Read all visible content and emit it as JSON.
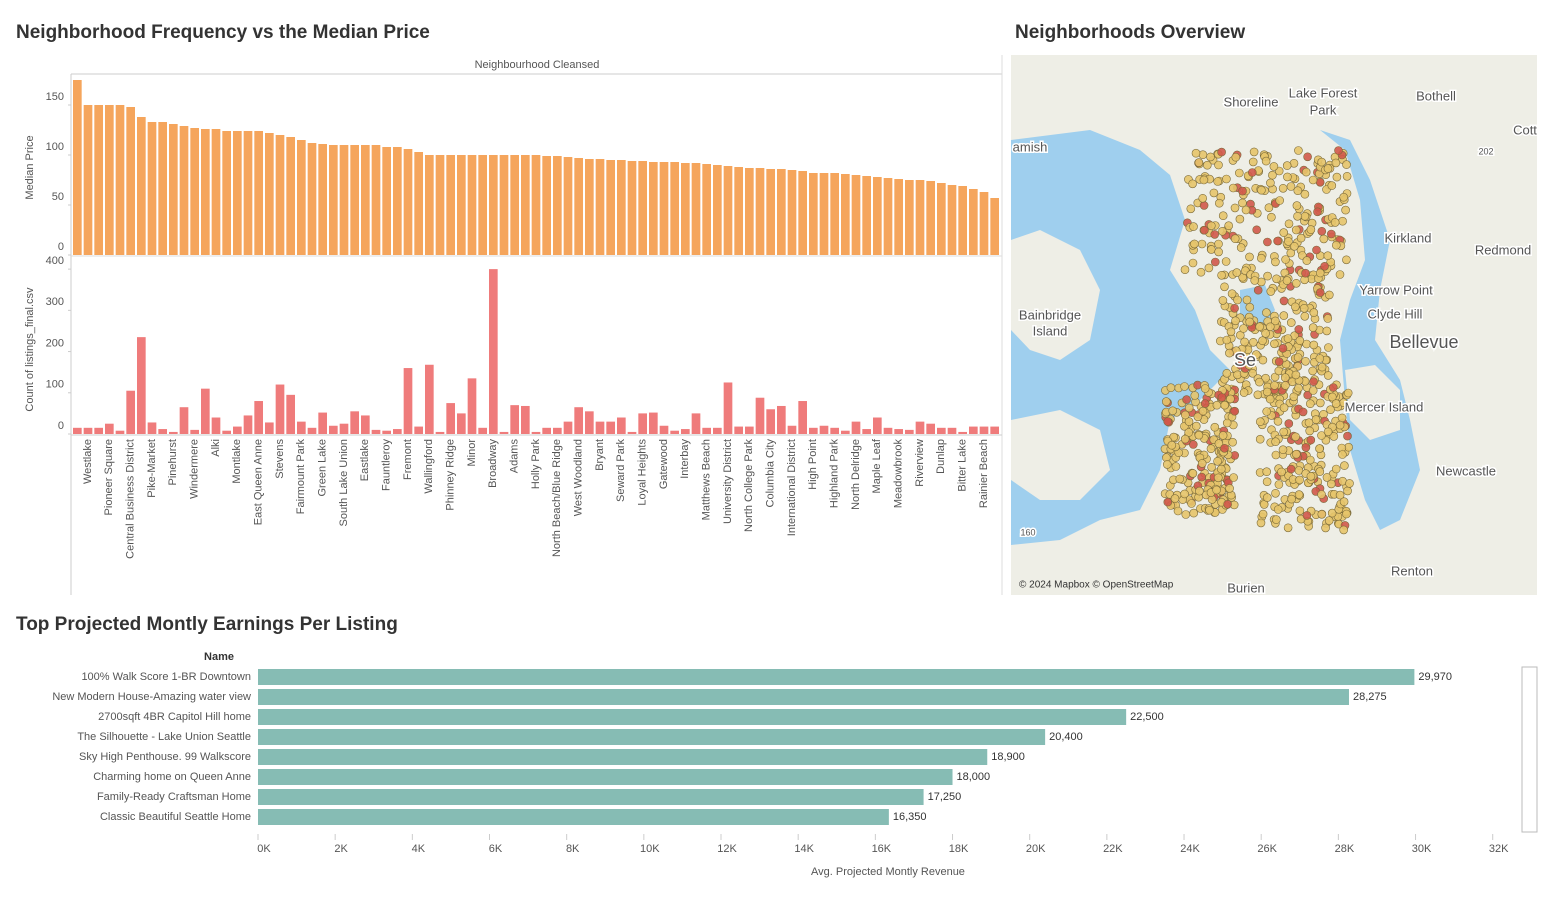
{
  "chart_data": [
    {
      "type": "panel-bar",
      "title": "Neighborhood Frequency vs the Median Price",
      "x_label": "Neighbourhood Cleansed",
      "categories": [
        null,
        "Westlake",
        null,
        "Pioneer Square",
        null,
        "Central Business District",
        null,
        "Pike-Market",
        null,
        "Pinehurst",
        null,
        "Windermere",
        null,
        "Alki",
        null,
        "Montlake",
        null,
        "East Queen Anne",
        null,
        "Stevens",
        null,
        "Fairmount Park",
        null,
        "Green Lake",
        null,
        "South Lake Union",
        null,
        "Eastlake",
        null,
        "Fauntleroy",
        null,
        "Fremont",
        null,
        "Wallingford",
        null,
        "Phinney Ridge",
        null,
        "Minor",
        null,
        "Broadway",
        null,
        "Adams",
        null,
        "Holly Park",
        null,
        "North Beach/Blue Ridge",
        null,
        "West Woodland",
        null,
        "Bryant",
        null,
        "Seward Park",
        null,
        "Loyal Heights",
        null,
        "Gatewood",
        null,
        "Interbay",
        null,
        "Matthews Beach",
        null,
        "University District",
        null,
        "North College Park",
        null,
        "Columbia City",
        null,
        "International District",
        null,
        "High Point",
        null,
        "Highland Park",
        null,
        "North Delridge",
        null,
        "Maple Leaf",
        null,
        "Meadowbrook",
        null,
        "Riverview",
        null,
        "Dunlap",
        null,
        "Bitter Lake",
        null,
        "Rainier Beach",
        null
      ],
      "panels": [
        {
          "y_label": "Median Price",
          "color": "#f5a55c",
          "ylim": [
            0,
            175
          ],
          "yticks": [
            0,
            50,
            100,
            150
          ],
          "values": [
            175,
            150,
            150,
            150,
            150,
            148,
            138,
            133,
            133,
            131,
            129,
            127,
            126,
            126,
            124,
            124,
            124,
            124,
            122,
            120,
            118,
            115,
            112,
            111,
            110,
            110,
            110,
            110,
            110,
            108,
            108,
            106,
            103,
            100,
            100,
            100,
            100,
            100,
            100,
            100,
            100,
            100,
            100,
            100,
            99,
            99,
            98,
            97,
            96,
            96,
            95,
            95,
            94,
            94,
            93,
            93,
            93,
            92,
            92,
            91,
            90,
            89,
            88,
            87,
            87,
            86,
            86,
            85,
            84,
            82,
            82,
            82,
            81,
            80,
            79,
            78,
            77,
            76,
            75,
            75,
            74,
            72,
            70,
            69,
            66,
            63,
            57
          ]
        },
        {
          "y_label": "Count of listings_final.csv",
          "color": "#ef7b7b",
          "ylim": [
            0,
            410
          ],
          "yticks": [
            0,
            100,
            200,
            300,
            400
          ],
          "values": [
            15,
            15,
            15,
            25,
            8,
            105,
            235,
            28,
            12,
            5,
            65,
            10,
            110,
            40,
            8,
            18,
            45,
            80,
            28,
            120,
            95,
            30,
            15,
            52,
            20,
            25,
            55,
            45,
            10,
            8,
            12,
            160,
            18,
            168,
            5,
            75,
            50,
            135,
            15,
            400,
            5,
            70,
            68,
            5,
            15,
            15,
            30,
            65,
            55,
            30,
            30,
            40,
            5,
            50,
            52,
            20,
            8,
            12,
            50,
            15,
            15,
            125,
            18,
            18,
            88,
            60,
            68,
            20,
            80,
            15,
            20,
            15,
            8,
            30,
            12,
            40,
            15,
            12,
            10,
            30,
            25,
            15,
            15,
            5,
            18,
            18,
            18
          ]
        }
      ]
    },
    {
      "type": "hbar",
      "title": "Top Projected Montly Earnings Per Listing",
      "category_label": "Name",
      "x_label": "Avg. Projected Montly Revenue",
      "categories": [
        "100% Walk Score 1-BR Downtown",
        "New Modern House-Amazing water view",
        "2700sqft 4BR Capitol Hill home",
        "The Silhouette - Lake Union Seattle",
        "Sky High Penthouse. 99 Walkscore",
        "Charming home on Queen Anne",
        "Family-Ready Craftsman Home",
        "Classic Beautiful Seattle Home"
      ],
      "values": [
        29970,
        28275,
        22500,
        20400,
        18900,
        18000,
        17250,
        16350
      ],
      "value_labels": [
        "29,970",
        "28,275",
        "22,500",
        "20,400",
        "18,900",
        "18,000",
        "17,250",
        "16,350"
      ],
      "color": "#86bcb4",
      "xlim": [
        0,
        32500
      ],
      "xticks": [
        {
          "value": 0,
          "label": "0K"
        },
        {
          "value": 2000,
          "label": "2K"
        },
        {
          "value": 4000,
          "label": "4K"
        },
        {
          "value": 6000,
          "label": "6K"
        },
        {
          "value": 8000,
          "label": "8K"
        },
        {
          "value": 10000,
          "label": "10K"
        },
        {
          "value": 12000,
          "label": "12K"
        },
        {
          "value": 14000,
          "label": "14K"
        },
        {
          "value": 16000,
          "label": "16K"
        },
        {
          "value": 18000,
          "label": "18K"
        },
        {
          "value": 20000,
          "label": "20K"
        },
        {
          "value": 22000,
          "label": "22K"
        },
        {
          "value": 24000,
          "label": "24K"
        },
        {
          "value": 26000,
          "label": "26K"
        },
        {
          "value": 28000,
          "label": "28K"
        },
        {
          "value": 30000,
          "label": "30K"
        },
        {
          "value": 32000,
          "label": "32K"
        }
      ]
    }
  ],
  "map": {
    "title": "Neighborhoods Overview",
    "attribution": "© 2024 Mapbox © OpenStreetMap",
    "labels": [
      "Shoreline",
      "Lake Forest",
      "Park",
      "Bothell",
      "amish",
      "Cott",
      "202",
      "Kirkland",
      "Redmond",
      "Yarrow Point",
      "Clyde Hill",
      "Bainbridge",
      "Island",
      "Bellevue",
      "Se",
      "Mercer Island",
      "Newcastle",
      "160",
      "Renton",
      "Burien"
    ]
  }
}
